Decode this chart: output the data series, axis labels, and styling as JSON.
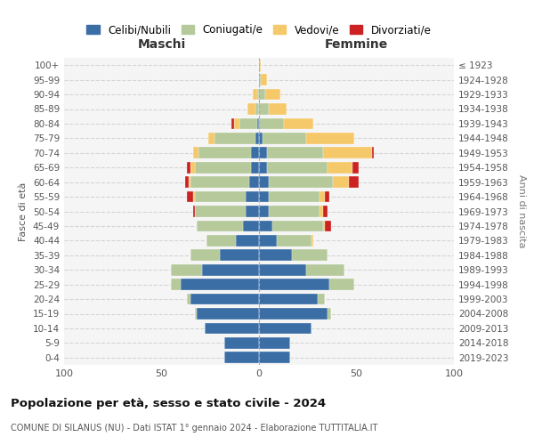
{
  "age_groups": [
    "0-4",
    "5-9",
    "10-14",
    "15-19",
    "20-24",
    "25-29",
    "30-34",
    "35-39",
    "40-44",
    "45-49",
    "50-54",
    "55-59",
    "60-64",
    "65-69",
    "70-74",
    "75-79",
    "80-84",
    "85-89",
    "90-94",
    "95-99",
    "100+"
  ],
  "birth_years": [
    "2019-2023",
    "2014-2018",
    "2009-2013",
    "2004-2008",
    "1999-2003",
    "1994-1998",
    "1989-1993",
    "1984-1988",
    "1979-1983",
    "1974-1978",
    "1969-1973",
    "1964-1968",
    "1959-1963",
    "1954-1958",
    "1949-1953",
    "1944-1948",
    "1939-1943",
    "1934-1938",
    "1929-1933",
    "1924-1928",
    "≤ 1923"
  ],
  "colors": {
    "celibi": "#3b6ea5",
    "coniugati": "#b5c99a",
    "vedovi": "#f5c96a",
    "divorziati": "#cc2222"
  },
  "maschi": {
    "celibi": [
      18,
      18,
      28,
      32,
      35,
      40,
      29,
      20,
      12,
      8,
      7,
      7,
      5,
      4,
      4,
      2,
      1,
      0,
      0,
      0,
      0
    ],
    "coniugati": [
      0,
      0,
      0,
      1,
      2,
      5,
      16,
      15,
      15,
      24,
      26,
      26,
      30,
      29,
      27,
      21,
      9,
      2,
      1,
      0,
      0
    ],
    "vedovi": [
      0,
      0,
      0,
      0,
      0,
      0,
      0,
      0,
      0,
      0,
      0,
      1,
      1,
      2,
      3,
      3,
      3,
      4,
      2,
      0,
      0
    ],
    "divorziati": [
      0,
      0,
      0,
      0,
      0,
      0,
      0,
      0,
      0,
      0,
      1,
      3,
      2,
      2,
      0,
      0,
      1,
      0,
      0,
      0,
      0
    ]
  },
  "femmine": {
    "celibi": [
      16,
      16,
      27,
      35,
      30,
      36,
      24,
      17,
      9,
      7,
      5,
      5,
      5,
      4,
      4,
      2,
      0,
      0,
      0,
      0,
      0
    ],
    "coniugati": [
      0,
      0,
      0,
      2,
      4,
      13,
      20,
      18,
      18,
      26,
      26,
      26,
      33,
      31,
      29,
      22,
      13,
      5,
      3,
      1,
      0
    ],
    "vedovi": [
      0,
      0,
      0,
      0,
      0,
      0,
      0,
      0,
      1,
      1,
      2,
      3,
      8,
      13,
      25,
      25,
      15,
      9,
      8,
      3,
      1
    ],
    "divorziati": [
      0,
      0,
      0,
      0,
      0,
      0,
      0,
      0,
      0,
      3,
      2,
      2,
      5,
      3,
      1,
      0,
      0,
      0,
      0,
      0,
      0
    ]
  },
  "title": "Popolazione per età, sesso e stato civile - 2024",
  "subtitle": "COMUNE DI SILANUS (NU) - Dati ISTAT 1° gennaio 2024 - Elaborazione TUTTITALIA.IT",
  "xlabel_left": "Maschi",
  "xlabel_right": "Femmine",
  "ylabel_left": "Fasce di età",
  "ylabel_right": "Anni di nascita",
  "xlim": 100,
  "legend_labels": [
    "Celibi/Nubili",
    "Coniugati/e",
    "Vedovi/e",
    "Divorziati/e"
  ],
  "background_color": "#ffffff",
  "grid_color": "#cccccc"
}
